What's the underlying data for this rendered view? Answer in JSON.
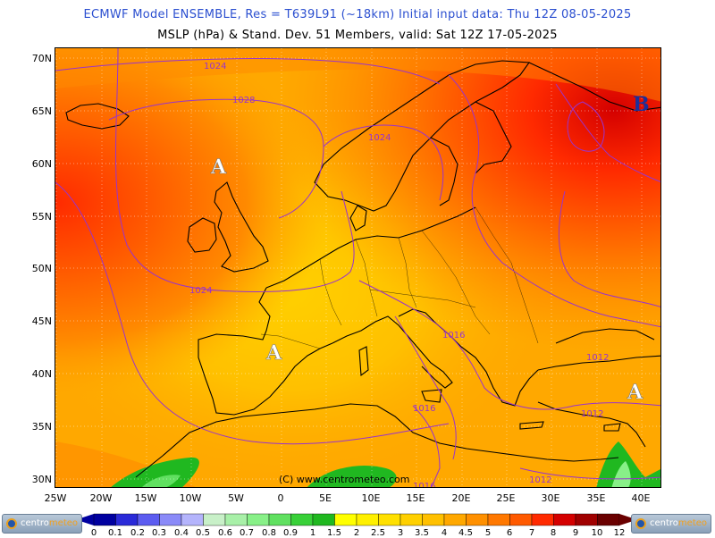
{
  "header": {
    "title_line_1": "ECMWF Model ENSEMBLE, Res = T639L91 (~18km)  Initial input data: Thu 12Z 08-05-2025",
    "title_line_2": "MSLP (hPa) & Stand. Dev.   51 Members, valid: Sat 12Z 17-05-2025"
  },
  "axes": {
    "lat_labels": [
      "70N",
      "65N",
      "60N",
      "55N",
      "50N",
      "45N",
      "40N",
      "35N",
      "30N"
    ],
    "lon_labels": [
      "25W",
      "20W",
      "15W",
      "10W",
      "5W",
      "0",
      "5E",
      "10E",
      "15E",
      "20E",
      "25E",
      "30E",
      "35E",
      "40E"
    ]
  },
  "map": {
    "isobar_labels": [
      "1024",
      "1028",
      "1024",
      "1024",
      "1016",
      "1016",
      "1012",
      "1012",
      "1012",
      "1016"
    ],
    "pressure_centers": [
      "A",
      "A",
      "A",
      "B"
    ],
    "copyright": "(C) www.centrometeo.com",
    "colors": {
      "isobar": "#9933cc",
      "coast": "#000000",
      "high_marker": "#ffffff",
      "low_marker": "#1c2f99"
    }
  },
  "legend": {
    "tick_labels": [
      "0",
      "0.1",
      "0.2",
      "0.3",
      "0.4",
      "0.5",
      "0.6",
      "0.7",
      "0.8",
      "0.9",
      "1",
      "1.5",
      "2",
      "2.5",
      "3",
      "3.5",
      "4",
      "4.5",
      "5",
      "6",
      "7",
      "8",
      "9",
      "10",
      "12"
    ],
    "colors": [
      "#0000a0",
      "#2a2ad8",
      "#5c5cf0",
      "#8a8af8",
      "#b4b4fc",
      "#c8f0c8",
      "#a8f0a8",
      "#88f088",
      "#60e060",
      "#38d038",
      "#20b820",
      "#ffff00",
      "#fff000",
      "#ffe000",
      "#ffd000",
      "#ffc000",
      "#ffa800",
      "#ff9000",
      "#ff7800",
      "#ff5a00",
      "#ff2a00",
      "#d40000",
      "#a00000",
      "#6a0000"
    ]
  },
  "branding": {
    "logo_left_a": "centro",
    "logo_left_b": "meteo",
    "logo_right_a": "centro",
    "logo_right_b": "meteo"
  }
}
